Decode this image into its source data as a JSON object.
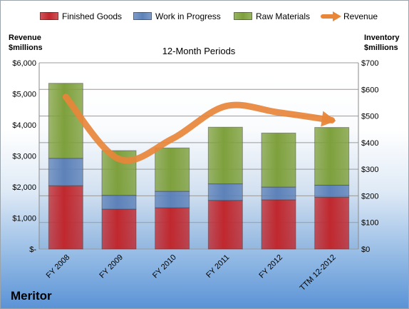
{
  "company": "Meritor",
  "colors": {
    "finished_goods": "#c0282e",
    "work_in_progress": "#5d82b9",
    "raw_materials": "#7ea03c",
    "revenue": "#e8863a"
  },
  "chart_data": {
    "type": "bar",
    "stacked": true,
    "title": "12-Month Periods",
    "ylabel_left": "Revenue $millions",
    "ylabel_right": "Inventory $millions",
    "categories": [
      "FY 2008",
      "FY 2009",
      "FY 2010",
      "FY 2011",
      "FY 2012",
      "TTM 12-2012"
    ],
    "series": [
      {
        "name": "Finished Goods",
        "axis": "right",
        "values": [
          238,
          150,
          155,
          183,
          185,
          195
        ]
      },
      {
        "name": "Work in Progress",
        "axis": "right",
        "values": [
          103,
          52,
          62,
          62,
          48,
          45
        ]
      },
      {
        "name": "Raw Materials",
        "axis": "right",
        "values": [
          282,
          168,
          163,
          213,
          203,
          217
        ]
      },
      {
        "name": "Revenue",
        "type": "line",
        "axis": "left",
        "values": [
          4900,
          2900,
          3550,
          4600,
          4400,
          4150
        ]
      }
    ],
    "ylim_left": [
      0,
      6000
    ],
    "ylim_right": [
      0,
      700
    ],
    "left_ticks": [
      "$-",
      "$1,000",
      "$2,000",
      "$3,000",
      "$4,000",
      "$5,000",
      "$6,000"
    ],
    "right_ticks": [
      "$0",
      "$100",
      "$200",
      "$300",
      "$400",
      "$500",
      "$600",
      "$700"
    ],
    "grid": true,
    "legend_position": "top"
  }
}
